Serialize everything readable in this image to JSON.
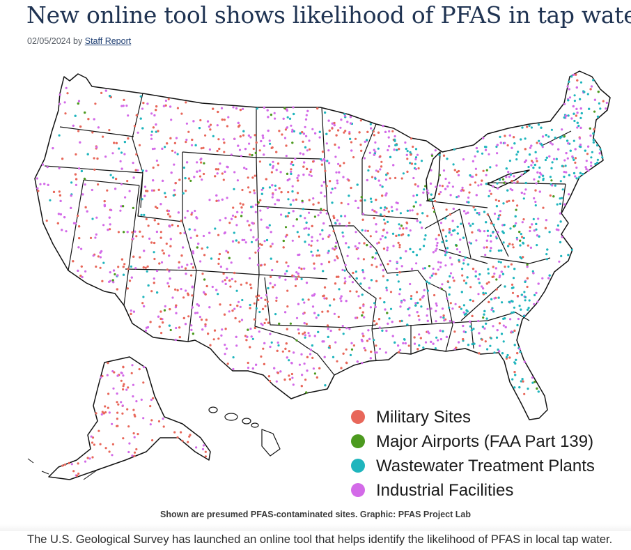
{
  "article": {
    "title": "New online tool shows likelihood of PFAS in tap water",
    "date": "02/05/2024",
    "by": "by",
    "author": "Staff Report",
    "caption": "Shown are presumed PFAS-contaminated sites. Graphic: PFAS Project Lab",
    "body_first_line": "The U.S. Geological Survey has launched an online tool that helps identify the likelihood of PFAS in local tap water."
  },
  "map": {
    "legend": [
      {
        "label": "Military Sites",
        "color": "#e8675a"
      },
      {
        "label": "Major Airports (FAA Part 139)",
        "color": "#4c9a1f"
      },
      {
        "label": "Wastewater Treatment Plants",
        "color": "#1fb5bd"
      },
      {
        "label": "Industrial Facilities",
        "color": "#d36ae8"
      }
    ]
  }
}
